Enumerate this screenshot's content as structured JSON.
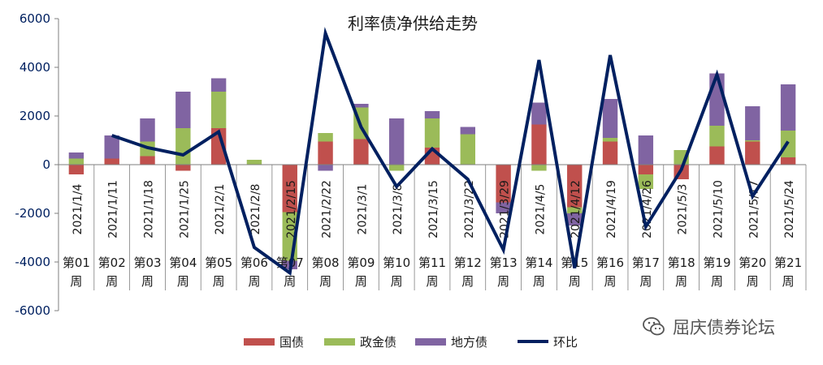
{
  "chart_data": {
    "type": "bar",
    "stacked": true,
    "title": "利率债净供给走势",
    "dates": [
      "2021/1/4",
      "2021/1/11",
      "2021/1/18",
      "2021/1/25",
      "2021/2/1",
      "2021/2/8",
      "2021/2/15",
      "2021/2/22",
      "2021/3/1",
      "2021/3/8",
      "2021/3/15",
      "2021/3/22",
      "2021/3/29",
      "2021/4/5",
      "2021/4/12",
      "2021/4/19",
      "2021/4/26",
      "2021/5/3",
      "2021/5/10",
      "2021/5/17",
      "2021/5/24"
    ],
    "weeks": [
      "第01周",
      "第02周",
      "第03周",
      "第04周",
      "第05周",
      "第06周",
      "第07周",
      "第08周",
      "第09周",
      "第10周",
      "第11周",
      "第12周",
      "第13周",
      "第14周",
      "第15周",
      "第16周",
      "第17周",
      "第18周",
      "第19周",
      "第20周",
      "第21周"
    ],
    "series": [
      {
        "name": "国债",
        "color": "#c0504d",
        "type": "bar",
        "values": [
          -400,
          250,
          350,
          -250,
          1500,
          0,
          -1950,
          950,
          1050,
          0,
          700,
          0,
          -1550,
          1650,
          -1750,
          950,
          -400,
          -600,
          750,
          950,
          300
        ]
      },
      {
        "name": "政金债",
        "color": "#9bbb59",
        "type": "bar",
        "values": [
          250,
          0,
          600,
          1500,
          1500,
          200,
          -2000,
          350,
          1300,
          -250,
          1200,
          1250,
          0,
          -250,
          -250,
          150,
          -600,
          600,
          850,
          50,
          1100
        ]
      },
      {
        "name": "地方债",
        "color": "#8064a2",
        "type": "bar",
        "values": [
          250,
          950,
          950,
          1500,
          550,
          0,
          -350,
          -250,
          150,
          1900,
          300,
          300,
          -450,
          900,
          -500,
          1600,
          1200,
          0,
          2150,
          1400,
          1900
        ]
      },
      {
        "name": "环比",
        "color": "#002060",
        "type": "line",
        "values": [
          null,
          1200,
          700,
          400,
          1350,
          -3400,
          -4450,
          5400,
          1550,
          -900,
          650,
          -600,
          -3500,
          4300,
          -4250,
          4500,
          -2550,
          -200,
          3700,
          -1300,
          950
        ]
      }
    ],
    "ylim": [
      -6000,
      6000
    ],
    "yticks": [
      -6000,
      -4000,
      -2000,
      0,
      2000,
      4000,
      6000
    ],
    "legend_position": "bottom"
  },
  "watermark": {
    "text": "屈庆债券论坛",
    "icon": "wechat-icon"
  }
}
